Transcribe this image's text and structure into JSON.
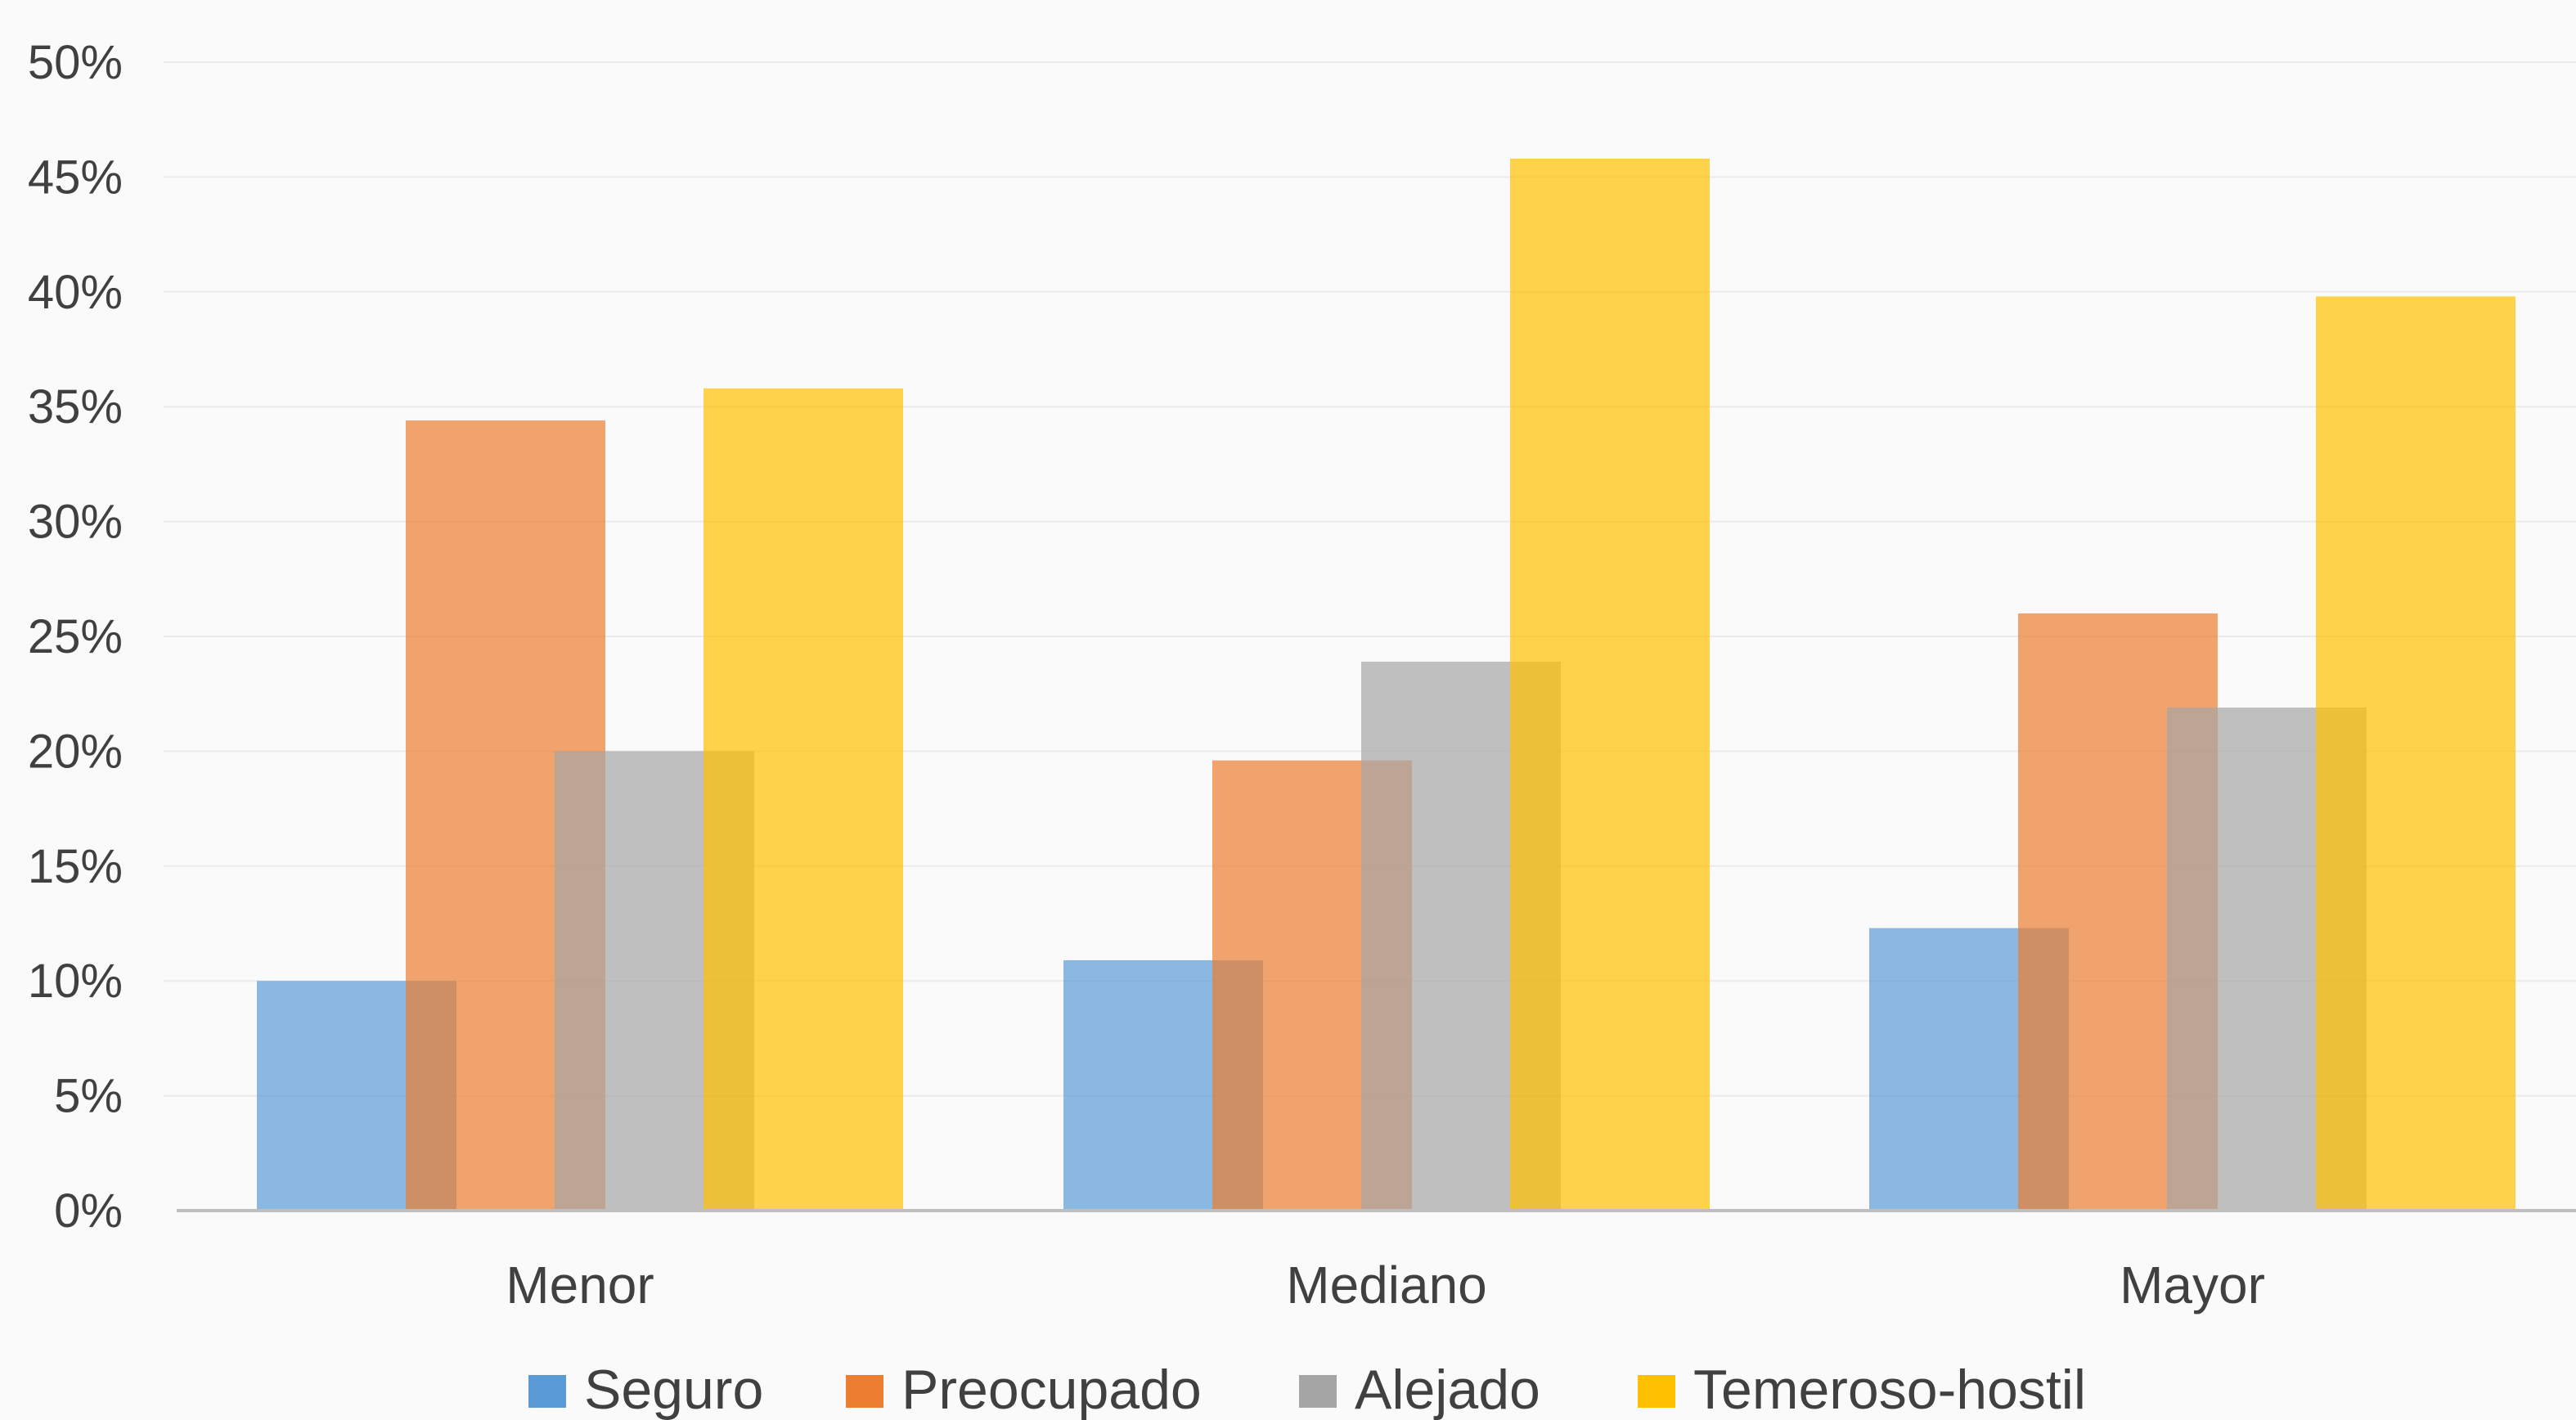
{
  "chart_data": {
    "type": "bar",
    "title": "",
    "xlabel": "",
    "ylabel": "",
    "categories": [
      "Menor",
      "Mediano",
      "Mayor"
    ],
    "series": [
      {
        "name": "Seguro",
        "color": "#5b9bd5",
        "values": [
          0.1,
          0.109,
          0.123
        ]
      },
      {
        "name": "Preocupado",
        "color": "#ed7d31",
        "values": [
          0.344,
          0.196,
          0.26
        ]
      },
      {
        "name": "Alejado",
        "color": "#a5a5a5",
        "values": [
          0.2,
          0.239,
          0.219
        ]
      },
      {
        "name": "Temeroso-hostil",
        "color": "#ffc000",
        "values": [
          0.358,
          0.458,
          0.398
        ]
      }
    ],
    "ylim": [
      0,
      0.5
    ],
    "yticks": [
      "0%",
      "5%",
      "10%",
      "15%",
      "20%",
      "25%",
      "30%",
      "35%",
      "40%",
      "45%",
      "50%"
    ],
    "grid": true,
    "legend_position": "bottom",
    "bar_opacity": 0.7
  }
}
